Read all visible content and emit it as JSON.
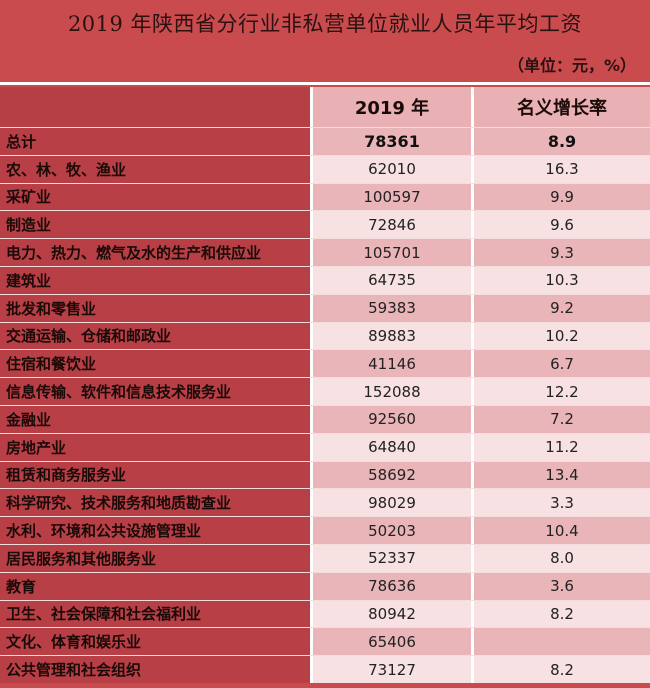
{
  "chart_data": {
    "type": "table",
    "title": "2019 年陕西省分行业非私营单位就业人员年平均工资",
    "unit_note": "（单位：元，%）",
    "columns": [
      "2019 年",
      "名义增长率"
    ],
    "rows": [
      {
        "name": "总计",
        "wage": "78361",
        "growth": "8.9"
      },
      {
        "name": "农、林、牧、渔业",
        "wage": "62010",
        "growth": "16.3"
      },
      {
        "name": "采矿业",
        "wage": "100597",
        "growth": "9.9"
      },
      {
        "name": "制造业",
        "wage": "72846",
        "growth": "9.6"
      },
      {
        "name": "电力、热力、燃气及水的生产和供应业",
        "wage": "105701",
        "growth": "9.3"
      },
      {
        "name": "建筑业",
        "wage": "64735",
        "growth": "10.3"
      },
      {
        "name": "批发和零售业",
        "wage": "59383",
        "growth": "9.2"
      },
      {
        "name": "交通运输、仓储和邮政业",
        "wage": "89883",
        "growth": "10.2"
      },
      {
        "name": "住宿和餐饮业",
        "wage": "41146",
        "growth": "6.7"
      },
      {
        "name": "信息传输、软件和信息技术服务业",
        "wage": "152088",
        "growth": "12.2"
      },
      {
        "name": "金融业",
        "wage": "92560",
        "growth": "7.2"
      },
      {
        "name": "房地产业",
        "wage": "64840",
        "growth": "11.2"
      },
      {
        "name": "租赁和商务服务业",
        "wage": "58692",
        "growth": "13.4"
      },
      {
        "name": "科学研究、技术服务和地质勘查业",
        "wage": "98029",
        "growth": "3.3"
      },
      {
        "name": "水利、环境和公共设施管理业",
        "wage": "50203",
        "growth": "10.4"
      },
      {
        "name": "居民服务和其他服务业",
        "wage": "52337",
        "growth": "8.0"
      },
      {
        "name": "教育",
        "wage": "78636",
        "growth": "3.6"
      },
      {
        "name": "卫生、社会保障和社会福利业",
        "wage": "80942",
        "growth": "8.2"
      },
      {
        "name": "文化、体育和娱乐业",
        "wage": "65406",
        "growth": ""
      },
      {
        "name": "公共管理和社会组织",
        "wage": "73127",
        "growth": "8.2"
      }
    ]
  }
}
